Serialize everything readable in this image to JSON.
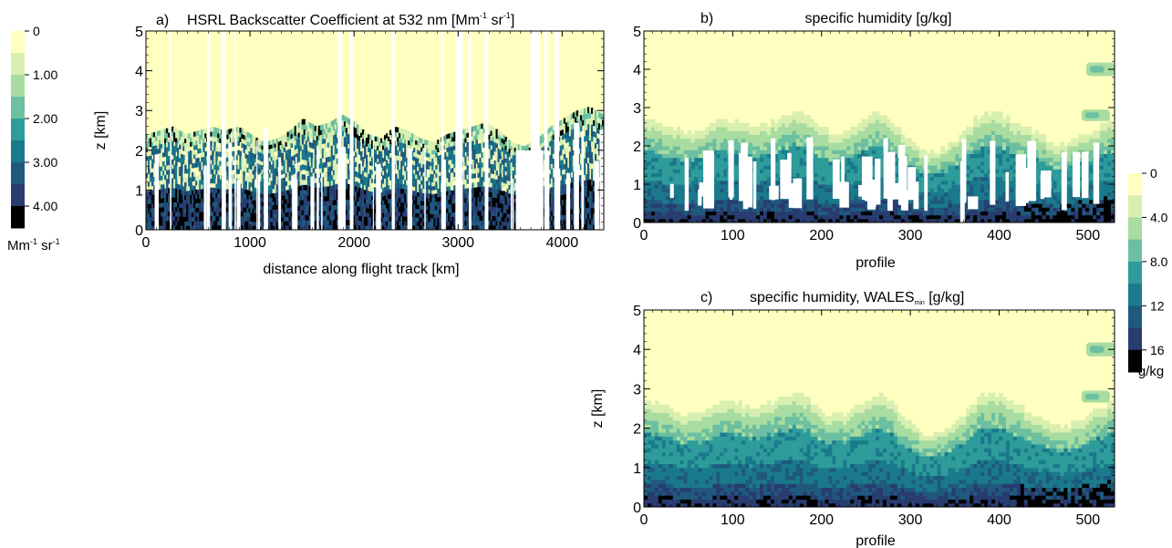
{
  "colors": {
    "levels": [
      "#ffffc0",
      "#d8efb0",
      "#a8dca0",
      "#6cbfa0",
      "#2e9c9a",
      "#1a7a8c",
      "#1f5a7e",
      "#283c70",
      "#000000"
    ]
  },
  "chart_data": [
    {
      "panel": "a)",
      "type": "heatmap",
      "title": "HSRL Backscatter Coefficient at 532 nm [Mm",
      "title_sup1": "-1",
      "title_mid": " sr",
      "title_sup2": "-1",
      "title_end": "]",
      "xlabel": "distance along flight track [km]",
      "ylabel": "z [km]",
      "xlim": [
        0,
        4400
      ],
      "ylim": [
        0,
        5
      ],
      "xticks": [
        "0",
        "1000",
        "2000",
        "3000",
        "4000"
      ],
      "xtick_values": [
        0,
        1000,
        2000,
        3000,
        4000
      ],
      "yticks": [
        "0",
        "1",
        "2",
        "3",
        "4",
        "5"
      ],
      "yaxis_top_km": [
        2.4,
        2.5,
        2.6,
        2.4,
        2.5,
        2.6,
        2.5,
        2.6,
        2.4,
        2.2,
        2.3,
        2.5,
        2.8,
        2.6,
        2.7,
        2.9,
        2.7,
        2.4,
        2.3,
        2.6,
        2.5,
        2.3,
        2.2,
        2.4,
        2.5,
        2.6,
        2.7,
        2.5,
        2.2,
        2.1,
        2.3,
        2.6,
        2.8,
        3.0,
        3.1,
        2.9
      ],
      "colorbar": {
        "ticks": [
          "0",
          "1.00",
          "2.00",
          "3.00",
          "4.00"
        ],
        "tick_values": [
          0,
          1,
          2,
          3,
          4
        ],
        "range": [
          0,
          4.5
        ],
        "unit": "Mm",
        "unit_sup1": "-1",
        "unit_mid": " sr",
        "unit_sup2": "-1"
      }
    },
    {
      "panel": "b)",
      "type": "heatmap",
      "title": "specific humidity [g/kg]",
      "xlabel": "profile",
      "ylabel": "",
      "xlim": [
        0,
        530
      ],
      "ylim": [
        0,
        5
      ],
      "xticks": [
        "0",
        "100",
        "200",
        "300",
        "400",
        "500"
      ],
      "xtick_values": [
        0,
        100,
        200,
        300,
        400,
        500
      ],
      "yticks": [
        "0",
        "1",
        "2",
        "3",
        "4",
        "5"
      ],
      "boundary_layer_top_km": [
        2.7,
        2.6,
        2.5,
        2.3,
        2.4,
        2.6,
        2.7,
        2.6,
        2.5,
        2.6,
        2.8,
        2.9,
        2.7,
        2.4,
        2.3,
        2.5,
        2.7,
        2.9,
        2.6,
        2.2,
        1.9,
        1.8,
        2.0,
        2.3,
        2.7,
        2.9,
        2.8,
        2.6,
        2.4,
        2.2,
        2.0,
        2.1,
        2.3,
        2.5,
        2.7
      ]
    },
    {
      "panel": "c)",
      "type": "heatmap",
      "title": "specific humidity, WALES",
      "title_sub": "min",
      "title_end": " [g/kg]",
      "xlabel": "profile",
      "ylabel": "z [km]",
      "xlim": [
        0,
        530
      ],
      "ylim": [
        0,
        5
      ],
      "xticks": [
        "0",
        "100",
        "200",
        "300",
        "400",
        "500"
      ],
      "xtick_values": [
        0,
        100,
        200,
        300,
        400,
        500
      ],
      "yticks": [
        "0",
        "1",
        "2",
        "3",
        "4",
        "5"
      ],
      "colorbar": {
        "ticks": [
          "0",
          "4.0",
          "8.0",
          "12",
          "16"
        ],
        "tick_values": [
          0,
          4,
          8,
          12,
          16
        ],
        "range": [
          0,
          18
        ],
        "unit": "g/kg"
      }
    }
  ]
}
